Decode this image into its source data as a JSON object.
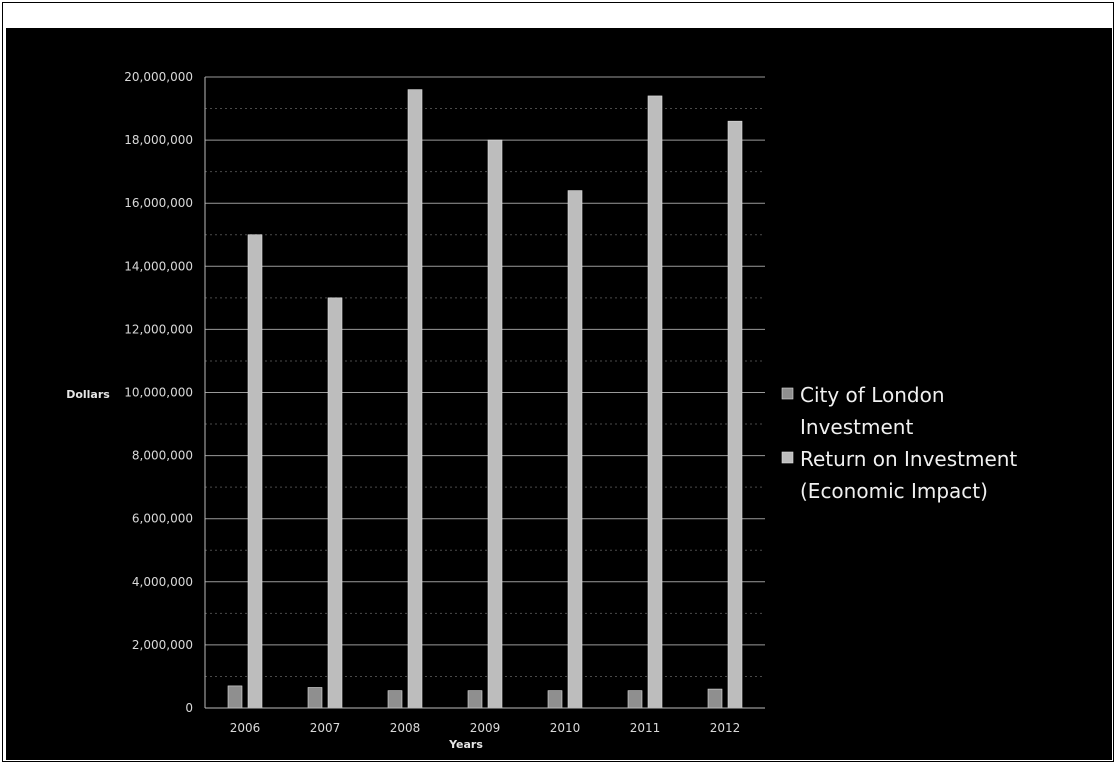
{
  "chart_data": {
    "type": "bar",
    "title": "",
    "xlabel": "Years",
    "ylabel": "Dollars",
    "ylim": [
      0,
      20000000
    ],
    "yticks": [
      "0",
      "2,000,000",
      "4,000,000",
      "6,000,000",
      "8,000,000",
      "10,000,000",
      "12,000,000",
      "14,000,000",
      "16,000,000",
      "18,000,000",
      "20,000,000"
    ],
    "categories": [
      "2006",
      "2007",
      "2008",
      "2009",
      "2010",
      "2011",
      "2012"
    ],
    "grid": true,
    "legend_position": "right",
    "series": [
      {
        "name": "City of London Investment",
        "legend_lines": [
          "City of London",
          "Investment"
        ],
        "color": "#8f8f8f",
        "values": [
          700000,
          650000,
          550000,
          550000,
          550000,
          550000,
          600000
        ]
      },
      {
        "name": "Return on Investment (Economic Impact)",
        "legend_lines": [
          "Return on Investment",
          "(Economic Impact)"
        ],
        "color": "#bdbdbd",
        "values": [
          15000000,
          13000000,
          19600000,
          18000000,
          16400000,
          19400000,
          18600000
        ]
      }
    ]
  }
}
